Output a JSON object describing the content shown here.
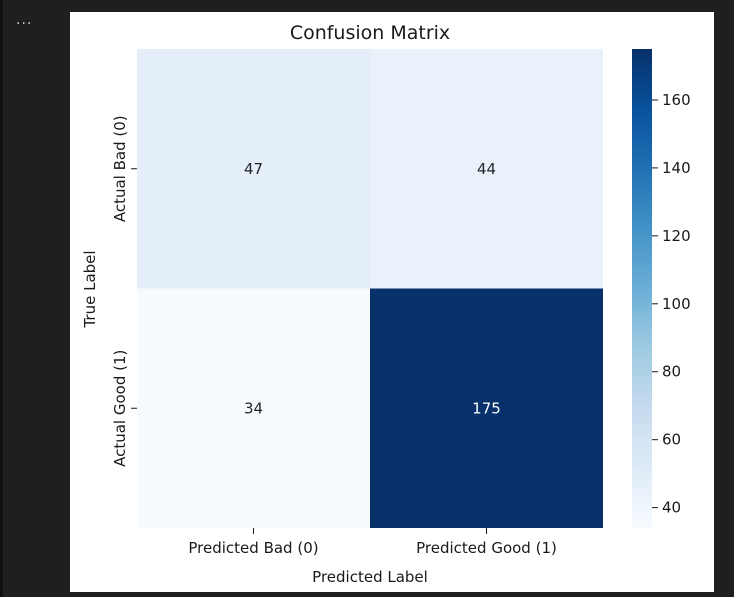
{
  "cell": {
    "more_label": "..."
  },
  "chart_data": {
    "type": "heatmap",
    "title": "Confusion Matrix",
    "xlabel": "Predicted Label",
    "ylabel": "True Label",
    "x_categories": [
      "Predicted Bad (0)",
      "Predicted Good (1)"
    ],
    "y_categories": [
      "Actual Bad (0)",
      "Actual Good (1)"
    ],
    "values": [
      [
        47,
        44
      ],
      [
        34,
        175
      ]
    ],
    "colormap": "Blues",
    "colorbar": {
      "min": 34,
      "max": 175,
      "ticks": [
        40,
        60,
        80,
        100,
        120,
        140,
        160
      ]
    }
  }
}
